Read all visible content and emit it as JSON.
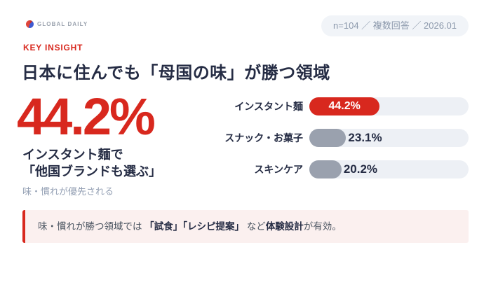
{
  "header": {
    "brand": "GLOBAL DAILY",
    "meta_badge": "n=104 ／ 複数回答 ／ 2026.01"
  },
  "insight": {
    "eyebrow": "KEY INSIGHT",
    "title": "日本に住んでも「母国の味」が勝つ領域"
  },
  "highlight": {
    "big_value": "44.2%",
    "line1": "インスタント麺で",
    "line2": "「他国ブランドも選ぶ」",
    "caption": "味・慣れが優先される"
  },
  "chart_data": {
    "type": "bar",
    "orientation": "horizontal",
    "title": "日本に住んでも「母国の味」が勝つ領域",
    "categories": [
      "インスタント麺",
      "スナック・お菓子",
      "スキンケア"
    ],
    "values": [
      44.2,
      23.1,
      20.2
    ],
    "value_labels": [
      "44.2%",
      "23.1%",
      "20.2%"
    ],
    "xlim": [
      0,
      100
    ],
    "highlight_index": 0,
    "grid": false,
    "legend": false
  },
  "note": {
    "pre": "味・慣れが勝つ領域では ",
    "bold1": "「試食」「レシピ提案」",
    "mid": " など",
    "bold2": "体験設計",
    "post": "が有効。"
  },
  "colors": {
    "accent_red": "#D8281E",
    "navy": "#252C44",
    "bar_gray": "#9AA1AE",
    "bar_track": "#EDF0F5",
    "note_bg": "#FBF0EF",
    "muted_text": "#94A0B4",
    "badge_bg": "#F1F4F8",
    "badge_text": "#8C99AC"
  }
}
